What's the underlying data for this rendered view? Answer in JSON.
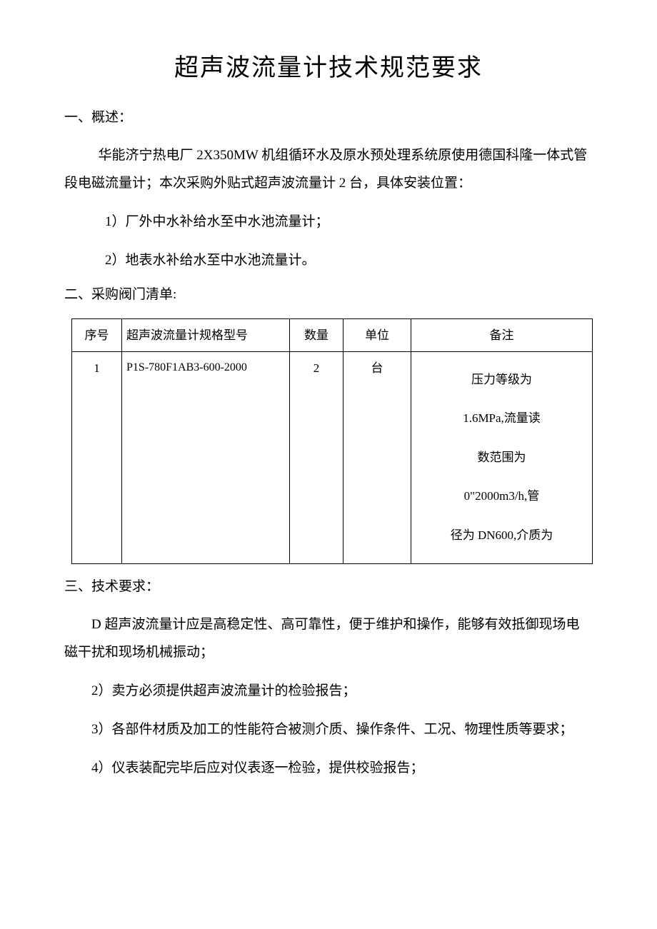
{
  "title": "超声波流量计技术规范要求",
  "section1": {
    "heading": "一、概述：",
    "para1": "华能济宁热电厂 2X350MW 机组循环水及原水预处理系统原使用德国科隆一体式管段电磁流量计；本次采购外贴式超声波流量计 2 台，具体安装位置：",
    "item1": "1）厂外中水补给水至中水池流量计；",
    "item2": "2）地表水补给水至中水池流量计。"
  },
  "section2": {
    "heading": "二、采购阀门清单:",
    "table": {
      "headers": {
        "seq": "序号",
        "spec": "超声波流量计规格型号",
        "qty": "数量",
        "unit": "单位",
        "remark": "备注"
      },
      "rows": [
        {
          "seq": "1",
          "spec": "P1S-780F1AB3-600-2000",
          "qty": "2",
          "unit": "台",
          "remark_l1": "压力等级为",
          "remark_l2": "1.6MPa,流量读",
          "remark_l3": "数范围为",
          "remark_l4": "0\"2000m3/h,管",
          "remark_l5": "径为 DN600,介质为"
        }
      ]
    }
  },
  "section3": {
    "heading": "三、技术要求：",
    "para1": "D 超声波流量计应是高稳定性、高可靠性，便于维护和操作，能够有效抵御现场电磁干扰和现场机械振动；",
    "para2": "2）卖方必须提供超声波流量计的检验报告；",
    "para3": "3）各部件材质及加工的性能符合被测介质、操作条件、工况、物理性质等要求；",
    "para4": "4）仪表装配完毕后应对仪表逐一检验，提供校验报告；"
  },
  "colors": {
    "text": "#000000",
    "background": "#ffffff",
    "border": "#000000"
  },
  "typography": {
    "title_fontsize": 34,
    "body_fontsize": 19,
    "table_fontsize": 17,
    "font_family": "SimSun"
  }
}
